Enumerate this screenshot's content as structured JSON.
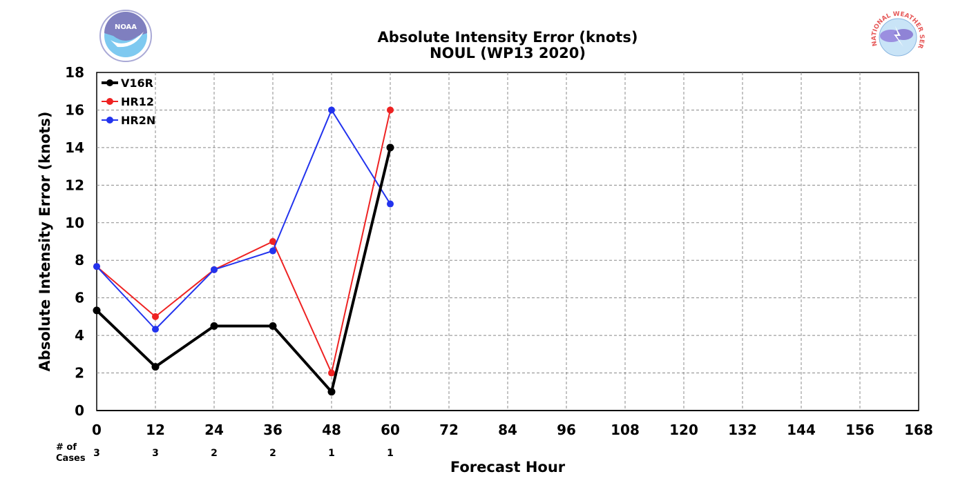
{
  "chart_data": {
    "type": "line",
    "title": "Absolute Intensity Error (knots)",
    "subtitle": "NOUL (WP13 2020)",
    "xlabel": "Forecast Hour",
    "ylabel": "Absolute Intensity Error (knots)",
    "xlim": [
      0,
      168
    ],
    "ylim": [
      0,
      18
    ],
    "xticks": [
      0,
      12,
      24,
      36,
      48,
      60,
      72,
      84,
      96,
      108,
      120,
      132,
      144,
      156,
      168
    ],
    "yticks": [
      0,
      2,
      4,
      6,
      8,
      10,
      12,
      14,
      16,
      18
    ],
    "grid": true,
    "legend_position": "top-left",
    "series": [
      {
        "name": "V16R",
        "color": "#000000",
        "bold": true,
        "x": [
          0,
          12,
          24,
          36,
          48,
          60
        ],
        "values": [
          5.33,
          2.33,
          4.5,
          4.5,
          1.0,
          14.0
        ]
      },
      {
        "name": "HR12",
        "color": "#ee2222",
        "bold": false,
        "x": [
          0,
          12,
          24,
          36,
          48,
          60
        ],
        "values": [
          7.67,
          5.0,
          7.5,
          9.0,
          2.0,
          16.0
        ]
      },
      {
        "name": "HR2N",
        "color": "#2233ee",
        "bold": false,
        "x": [
          0,
          12,
          24,
          36,
          48,
          60
        ],
        "values": [
          7.67,
          4.33,
          7.5,
          8.5,
          16.0,
          11.0
        ]
      }
    ],
    "cases_label_1": "# of",
    "cases_label_2": "Cases",
    "cases": [
      {
        "x": 0,
        "count": "3"
      },
      {
        "x": 12,
        "count": "3"
      },
      {
        "x": 24,
        "count": "2"
      },
      {
        "x": 36,
        "count": "2"
      },
      {
        "x": 48,
        "count": "1"
      },
      {
        "x": 60,
        "count": "1"
      }
    ]
  },
  "logos": {
    "noaa_text": "NOAA",
    "nws_text": "NATIONAL WEATHER SERVICE"
  }
}
